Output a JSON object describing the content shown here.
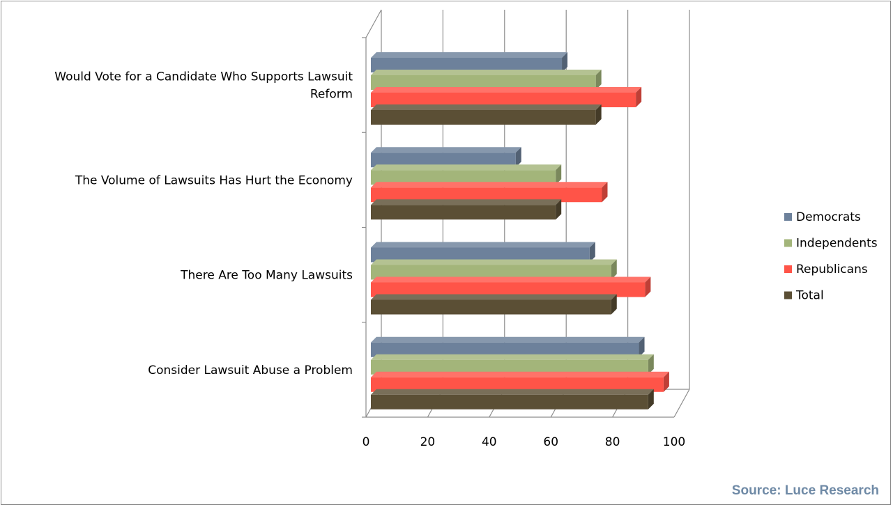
{
  "chart_data": {
    "type": "bar",
    "orientation": "horizontal",
    "style": "3d-clustered",
    "categories": [
      "Would Vote for a Candidate Who Supports Lawsuit Reform",
      "The Volume of Lawsuits Has Hurt the Economy",
      "There Are Too Many Lawsuits",
      "Consider Lawsuit Abuse a Problem"
    ],
    "series": [
      {
        "name": "Democrats",
        "color": "#6d819b",
        "values": [
          62,
          47,
          71,
          87
        ]
      },
      {
        "name": "Independents",
        "color": "#a3b57a",
        "values": [
          73,
          60,
          78,
          90
        ]
      },
      {
        "name": "Republicans",
        "color": "#ff5448",
        "values": [
          86,
          75,
          89,
          95
        ]
      },
      {
        "name": "Total",
        "color": "#5b4f35",
        "values": [
          73,
          60,
          78,
          90
        ]
      }
    ],
    "xlim": [
      0,
      100
    ],
    "xticks": [
      "0",
      "20",
      "40",
      "60",
      "80",
      "100"
    ],
    "grid": true,
    "legend": "right"
  },
  "source_note": "Source: Luce Research"
}
